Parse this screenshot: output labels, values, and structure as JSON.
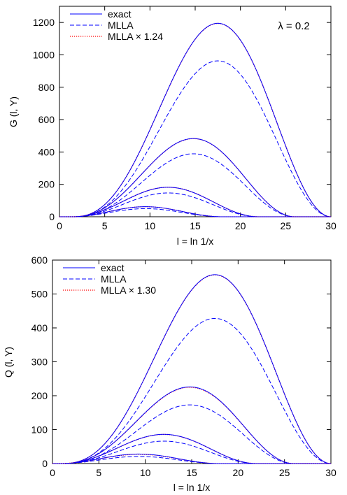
{
  "chart_data": [
    {
      "type": "line",
      "xlabel": "l = ln 1/x",
      "ylabel": "G (l, Y)",
      "annotation": "λ = 0.2",
      "xlim": [
        0,
        30
      ],
      "ylim": [
        0,
        1300
      ],
      "xticks": [
        "0",
        "5",
        "10",
        "15",
        "20",
        "25",
        "30"
      ],
      "yticks": [
        "0",
        "200",
        "400",
        "600",
        "800",
        "1000",
        "1200"
      ],
      "legend_position": "top-left",
      "legend": [
        {
          "label": "exact",
          "style": "solid",
          "color": "#0000ff"
        },
        {
          "label": "MLLA",
          "style": "dashed",
          "color": "#0000ff"
        },
        {
          "label": "MLLA × 1.24",
          "style": "dotted",
          "color": "#ff0000"
        }
      ],
      "scale_factor": 1.24,
      "grid": false,
      "curves": [
        {
          "start": 1.5,
          "end": 30,
          "peak_x": 17.5,
          "exact_peak": 1195,
          "mlla_peak": 963
        },
        {
          "start": 1.5,
          "end": 26,
          "peak_x": 14.8,
          "exact_peak": 483,
          "mlla_peak": 389
        },
        {
          "start": 1.5,
          "end": 22,
          "peak_x": 12.0,
          "exact_peak": 182,
          "mlla_peak": 147
        },
        {
          "start": 1.5,
          "end": 18,
          "peak_x": 9.5,
          "exact_peak": 62,
          "mlla_peak": 50
        }
      ]
    },
    {
      "type": "line",
      "xlabel": "l = ln 1/x",
      "ylabel": "Q (l, Y)",
      "annotation": "",
      "xlim": [
        0,
        30
      ],
      "ylim": [
        0,
        600
      ],
      "xticks": [
        "0",
        "5",
        "10",
        "15",
        "20",
        "25",
        "30"
      ],
      "yticks": [
        "0",
        "100",
        "200",
        "300",
        "400",
        "500",
        "600"
      ],
      "legend_position": "top-left",
      "legend": [
        {
          "label": "exact",
          "style": "solid",
          "color": "#0000ff"
        },
        {
          "label": "MLLA",
          "style": "dashed",
          "color": "#0000ff"
        },
        {
          "label": "MLLA × 1.30",
          "style": "dotted",
          "color": "#ff0000"
        }
      ],
      "scale_factor": 1.3,
      "grid": false,
      "curves": [
        {
          "start": 1.0,
          "end": 30,
          "peak_x": 17.5,
          "exact_peak": 557,
          "mlla_peak": 428
        },
        {
          "start": 1.0,
          "end": 26,
          "peak_x": 14.8,
          "exact_peak": 226,
          "mlla_peak": 173
        },
        {
          "start": 1.0,
          "end": 22,
          "peak_x": 12.0,
          "exact_peak": 86,
          "mlla_peak": 66
        },
        {
          "start": 1.0,
          "end": 18,
          "peak_x": 9.3,
          "exact_peak": 28,
          "mlla_peak": 21
        }
      ]
    }
  ]
}
